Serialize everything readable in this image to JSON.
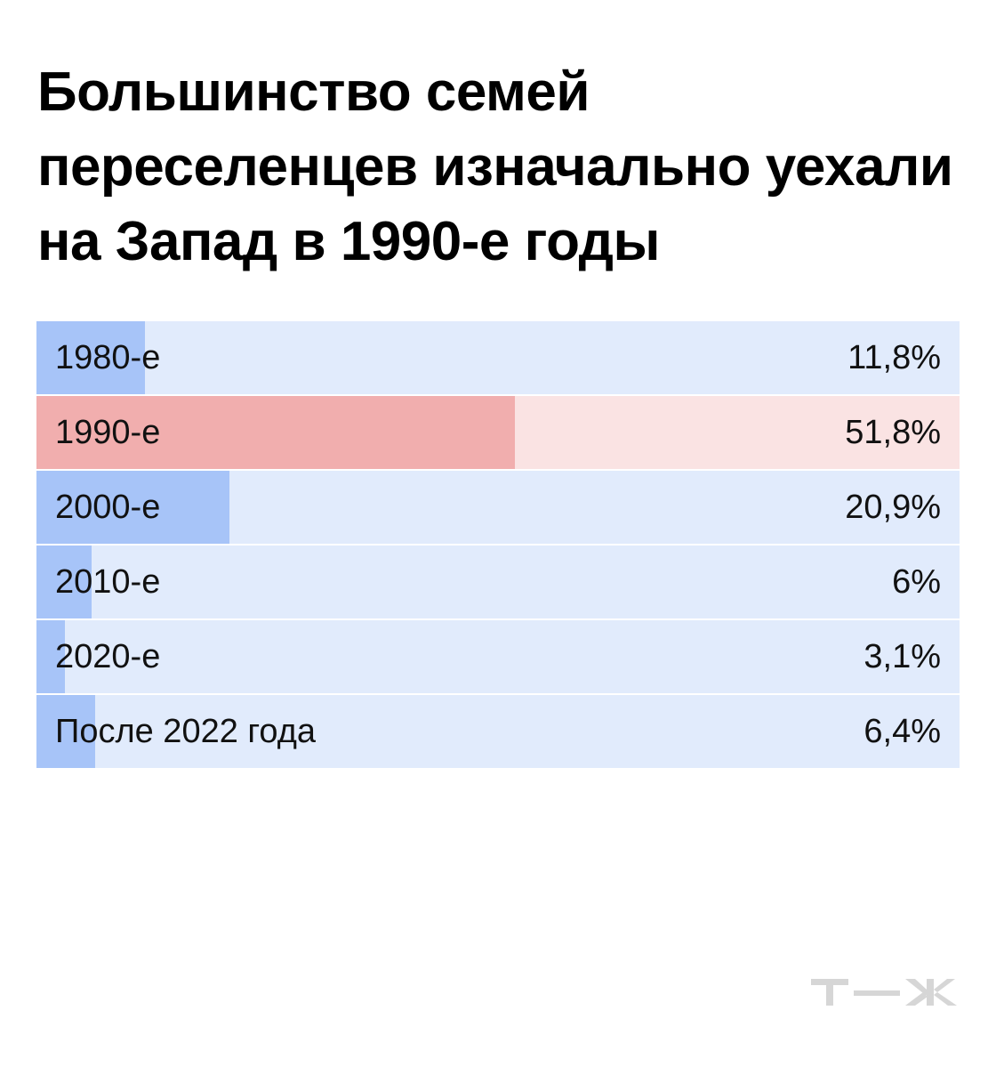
{
  "colors": {
    "bar_track": "#e1ebfc",
    "bar_fill": "#a7c4f8",
    "highlight_track": "#fae3e3",
    "highlight_fill": "#f1aeae",
    "logo": "#d6d6d6"
  },
  "logo_text": "т—ж",
  "chart_data": {
    "type": "bar",
    "orientation": "horizontal",
    "title": "Большинство семей переселенцев изначально уехали на Запад в 1990-е годы",
    "xlim": [
      0,
      100
    ],
    "grid": false,
    "highlight": "1990-е",
    "categories": [
      "1980-е",
      "1990-е",
      "2000-е",
      "2010-е",
      "2020-е",
      "После 2022 года"
    ],
    "values": [
      11.8,
      51.8,
      20.9,
      6,
      3.1,
      6.4
    ],
    "value_labels": [
      "11,8%",
      "51,8%",
      "20,9%",
      "6%",
      "3,1%",
      "6,4%"
    ]
  }
}
